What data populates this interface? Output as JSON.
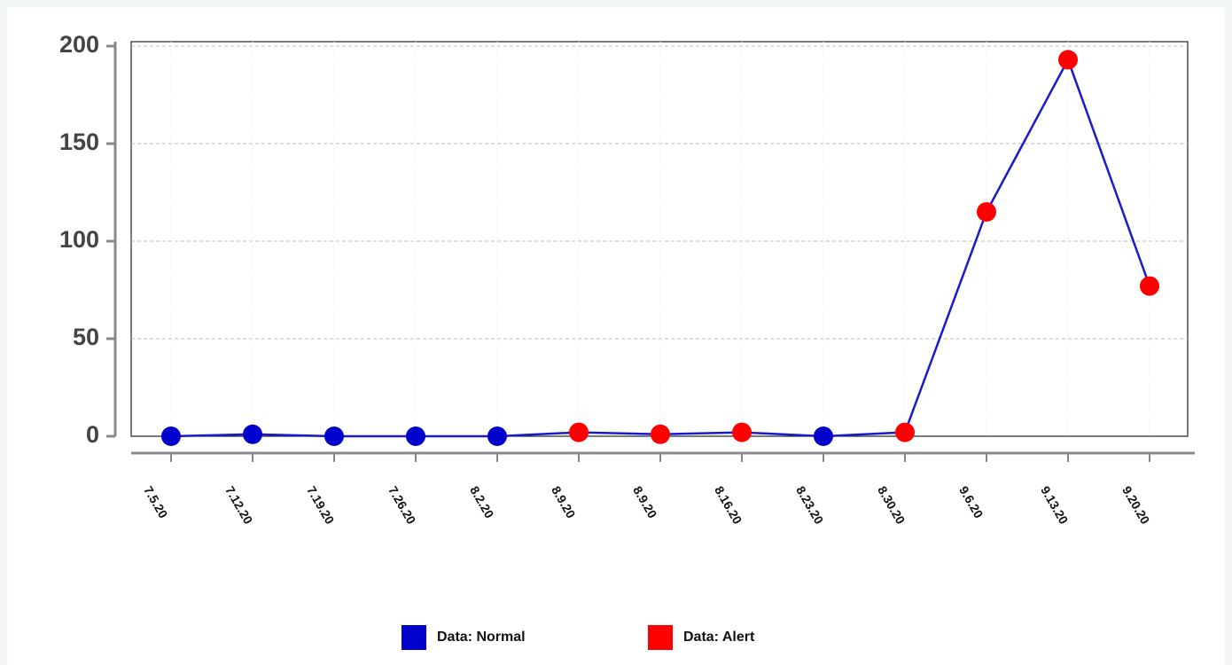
{
  "chart_data": {
    "type": "line",
    "categories": [
      "7.5.20",
      "7.12.20",
      "7.19.20",
      "7.26.20",
      "8.2.20",
      "8.9.20",
      "8.9.20",
      "8.16.20",
      "8.23.20",
      "8.30.20",
      "9.6.20",
      "9.13.20",
      "9.20.20"
    ],
    "values": [
      0,
      1,
      0,
      0,
      0,
      2,
      1,
      2,
      0,
      2,
      115,
      193,
      77
    ],
    "line_color": "#1a1acc",
    "point_colors": [
      "#0000cc",
      "#0000cc",
      "#0000cc",
      "#0000cc",
      "#0000cc",
      "#ff0000",
      "#ff0000",
      "#ff0000",
      "#0000cc",
      "#ff0000",
      "#ff0000",
      "#ff0000",
      "#ff0000"
    ],
    "legend": [
      {
        "name": "Data: Normal",
        "color": "#0000cc"
      },
      {
        "name": "Data: Alert",
        "color": "#ff0000"
      }
    ],
    "ylim": [
      0,
      200
    ],
    "yticks": [
      0,
      50,
      100,
      150,
      200
    ],
    "grid": true
  }
}
